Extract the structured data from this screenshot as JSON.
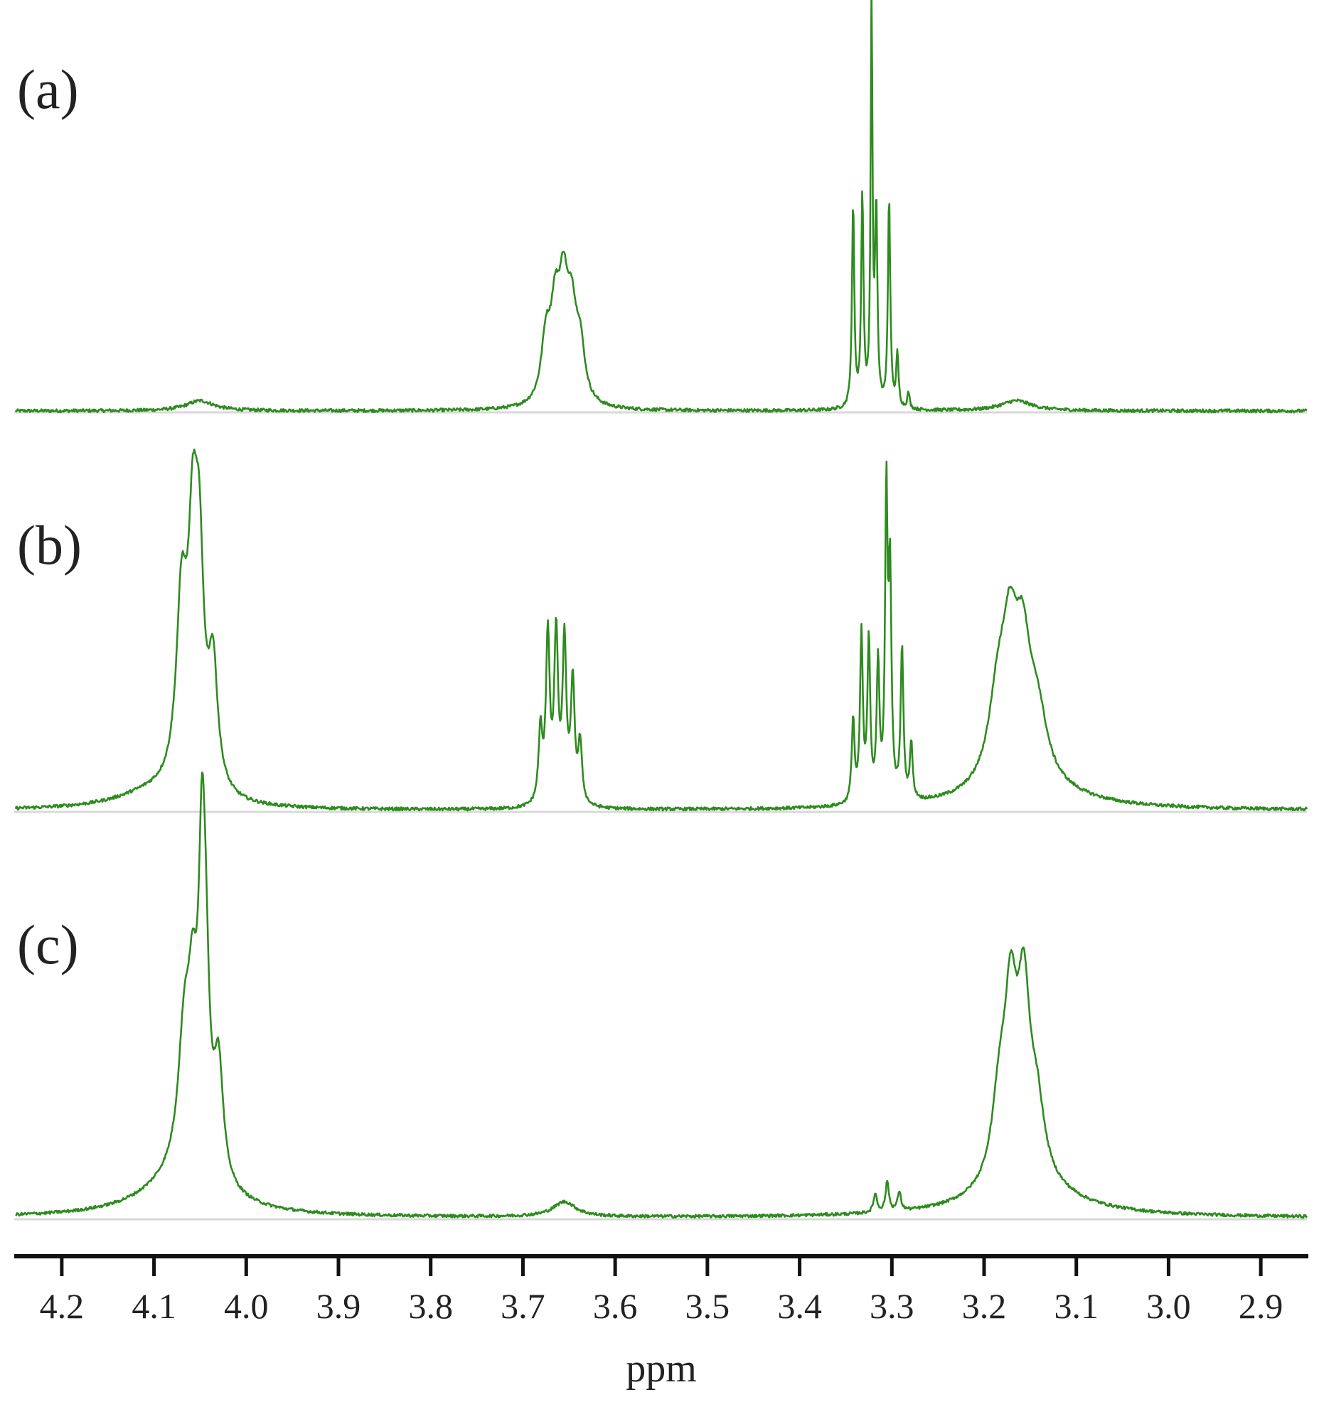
{
  "chart_data": {
    "type": "line",
    "title": "",
    "xlabel": "ppm",
    "ylabel": "",
    "xlim": [
      4.25,
      2.85
    ],
    "x_reversed": true,
    "xticks": [
      4.2,
      4.1,
      4.0,
      3.9,
      3.8,
      3.7,
      3.6,
      3.5,
      3.4,
      3.3,
      3.2,
      3.1,
      3.0,
      2.9
    ],
    "xtick_labels": [
      "4.2",
      "4.1",
      "4.0",
      "3.9",
      "3.8",
      "3.7",
      "3.6",
      "3.5",
      "3.4",
      "3.3",
      "3.2",
      "3.1",
      "3.0",
      "2.9"
    ],
    "grid": false,
    "line_color": "#2e8b1f",
    "baseline_color": "#d9d9d9",
    "series": [
      {
        "label": "(a)",
        "peaks": [
          {
            "ppm": 4.05,
            "height": 0.025,
            "width": 0.018
          },
          {
            "ppm": 3.675,
            "height": 0.15,
            "width": 0.006
          },
          {
            "ppm": 3.665,
            "height": 0.2,
            "width": 0.006
          },
          {
            "ppm": 3.656,
            "height": 0.25,
            "width": 0.006
          },
          {
            "ppm": 3.647,
            "height": 0.19,
            "width": 0.006
          },
          {
            "ppm": 3.638,
            "height": 0.13,
            "width": 0.006
          },
          {
            "ppm": 3.342,
            "height": 0.5,
            "width": 0.0015
          },
          {
            "ppm": 3.332,
            "height": 0.52,
            "width": 0.0015
          },
          {
            "ppm": 3.322,
            "height": 1.0,
            "width": 0.0012
          },
          {
            "ppm": 3.317,
            "height": 0.48,
            "width": 0.0015
          },
          {
            "ppm": 3.303,
            "height": 0.52,
            "width": 0.0015
          },
          {
            "ppm": 3.294,
            "height": 0.13,
            "width": 0.0015
          },
          {
            "ppm": 3.282,
            "height": 0.04,
            "width": 0.0015
          },
          {
            "ppm": 3.165,
            "height": 0.025,
            "width": 0.02
          }
        ]
      },
      {
        "label": "(b)",
        "peaks": [
          {
            "ppm": 4.1,
            "height": 0.04,
            "width": 0.05
          },
          {
            "ppm": 4.07,
            "height": 0.45,
            "width": 0.007
          },
          {
            "ppm": 4.058,
            "height": 0.52,
            "width": 0.006
          },
          {
            "ppm": 4.051,
            "height": 0.5,
            "width": 0.006
          },
          {
            "ppm": 4.036,
            "height": 0.3,
            "width": 0.006
          },
          {
            "ppm": 3.681,
            "height": 0.18,
            "width": 0.0025
          },
          {
            "ppm": 3.673,
            "height": 0.42,
            "width": 0.0025
          },
          {
            "ppm": 3.664,
            "height": 0.42,
            "width": 0.0025
          },
          {
            "ppm": 3.655,
            "height": 0.4,
            "width": 0.0025
          },
          {
            "ppm": 3.646,
            "height": 0.3,
            "width": 0.0025
          },
          {
            "ppm": 3.638,
            "height": 0.15,
            "width": 0.0025
          },
          {
            "ppm": 3.342,
            "height": 0.21,
            "width": 0.0018
          },
          {
            "ppm": 3.333,
            "height": 0.42,
            "width": 0.0018
          },
          {
            "ppm": 3.325,
            "height": 0.4,
            "width": 0.0018
          },
          {
            "ppm": 3.315,
            "height": 0.34,
            "width": 0.0018
          },
          {
            "ppm": 3.306,
            "height": 0.75,
            "width": 0.0016
          },
          {
            "ppm": 3.302,
            "height": 0.55,
            "width": 0.0018
          },
          {
            "ppm": 3.289,
            "height": 0.38,
            "width": 0.0018
          },
          {
            "ppm": 3.279,
            "height": 0.14,
            "width": 0.0018
          },
          {
            "ppm": 3.155,
            "height": 0.06,
            "width": 0.06
          },
          {
            "ppm": 3.185,
            "height": 0.2,
            "width": 0.012
          },
          {
            "ppm": 3.172,
            "height": 0.3,
            "width": 0.01
          },
          {
            "ppm": 3.158,
            "height": 0.28,
            "width": 0.01
          },
          {
            "ppm": 3.142,
            "height": 0.15,
            "width": 0.012
          }
        ]
      },
      {
        "label": "(c)",
        "peaks": [
          {
            "ppm": 4.07,
            "height": 0.1,
            "width": 0.05
          },
          {
            "ppm": 4.067,
            "height": 0.35,
            "width": 0.008
          },
          {
            "ppm": 4.058,
            "height": 0.35,
            "width": 0.006
          },
          {
            "ppm": 4.048,
            "height": 0.7,
            "width": 0.0045
          },
          {
            "ppm": 4.044,
            "height": 0.38,
            "width": 0.005
          },
          {
            "ppm": 4.03,
            "height": 0.3,
            "width": 0.006
          },
          {
            "ppm": 3.655,
            "height": 0.04,
            "width": 0.015
          },
          {
            "ppm": 3.318,
            "height": 0.05,
            "width": 0.0022
          },
          {
            "ppm": 3.305,
            "height": 0.08,
            "width": 0.0022
          },
          {
            "ppm": 3.292,
            "height": 0.05,
            "width": 0.0022
          },
          {
            "ppm": 3.155,
            "height": 0.08,
            "width": 0.06
          },
          {
            "ppm": 3.183,
            "height": 0.22,
            "width": 0.01
          },
          {
            "ppm": 3.171,
            "height": 0.42,
            "width": 0.008
          },
          {
            "ppm": 3.157,
            "height": 0.45,
            "width": 0.008
          },
          {
            "ppm": 3.143,
            "height": 0.18,
            "width": 0.01
          }
        ]
      }
    ]
  }
}
